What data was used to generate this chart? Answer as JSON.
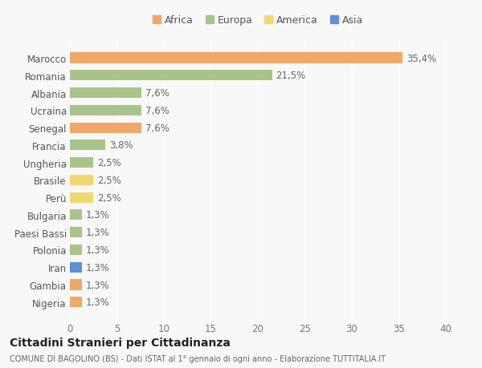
{
  "countries": [
    "Nigeria",
    "Gambia",
    "Iran",
    "Polonia",
    "Paesi Bassi",
    "Bulgaria",
    "Perù",
    "Brasile",
    "Ungheria",
    "Francia",
    "Senegal",
    "Ucraina",
    "Albania",
    "Romania",
    "Marocco"
  ],
  "values": [
    1.3,
    1.3,
    1.3,
    1.3,
    1.3,
    1.3,
    2.5,
    2.5,
    2.5,
    3.8,
    7.6,
    7.6,
    7.6,
    21.5,
    35.4
  ],
  "labels": [
    "1,3%",
    "1,3%",
    "1,3%",
    "1,3%",
    "1,3%",
    "1,3%",
    "2,5%",
    "2,5%",
    "2,5%",
    "3,8%",
    "7,6%",
    "7,6%",
    "7,6%",
    "21,5%",
    "35,4%"
  ],
  "continents": [
    "Africa",
    "Africa",
    "Asia",
    "Europa",
    "Europa",
    "Europa",
    "America",
    "America",
    "Europa",
    "Europa",
    "Africa",
    "Europa",
    "Europa",
    "Europa",
    "Africa"
  ],
  "colors": {
    "Africa": "#f0a868",
    "Europa": "#a8c48a",
    "America": "#f0d870",
    "Asia": "#6090d8"
  },
  "xlim": [
    0,
    40
  ],
  "xticks": [
    0,
    5,
    10,
    15,
    20,
    25,
    30,
    35,
    40
  ],
  "title": "Cittadini Stranieri per Cittadinanza",
  "subtitle": "COMUNE DI BAGOLINO (BS) - Dati ISTAT al 1° gennaio di ogni anno - Elaborazione TUTTITALIA.IT",
  "background_color": "#f8f8f8",
  "bar_height": 0.6,
  "grid_color": "#ffffff",
  "label_fontsize": 8.5,
  "tick_fontsize": 8.5,
  "legend_order": [
    "Africa",
    "Europa",
    "America",
    "Asia"
  ]
}
